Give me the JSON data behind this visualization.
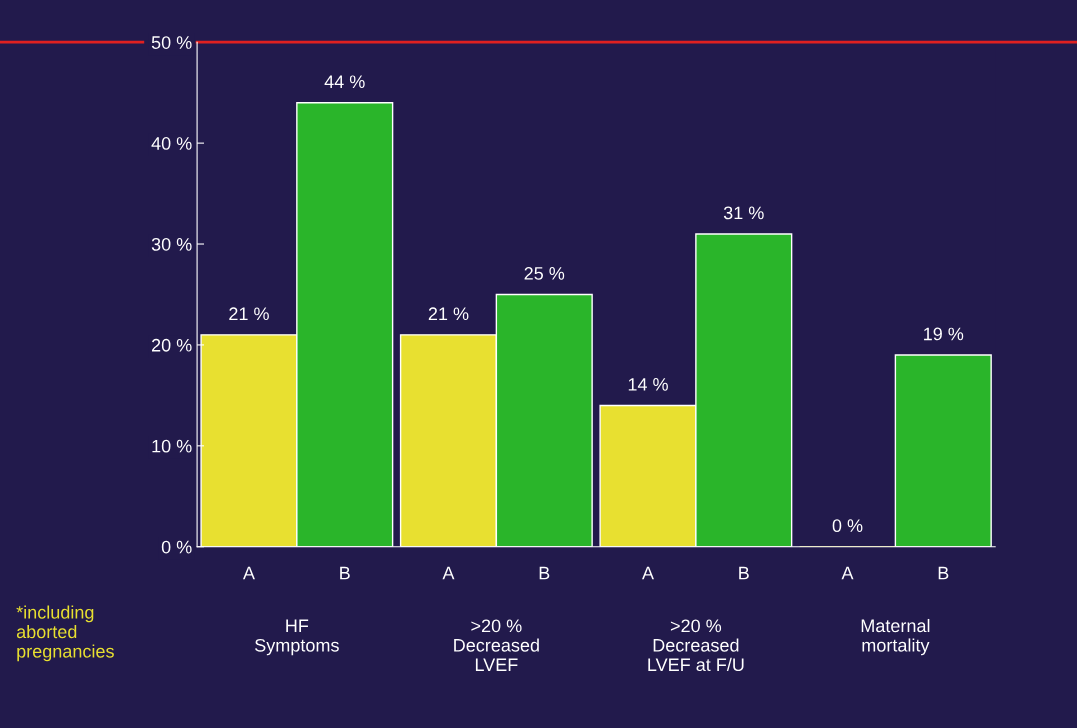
{
  "chart_data": {
    "type": "bar",
    "categories": [
      "HF\nSymptoms",
      ">20 %\nDecreased\nLVEF",
      ">20 %\nDecreased\nLVEF at F/U",
      "Maternal\nmortality"
    ],
    "series": [
      {
        "name": "A",
        "color": "#e8e030",
        "values": [
          21,
          21,
          14,
          0
        ],
        "value_labels": [
          "21 %",
          "21 %",
          "14 %",
          "0 %"
        ]
      },
      {
        "name": "B",
        "color": "#2ab52a",
        "values": [
          44,
          25,
          31,
          19
        ],
        "value_labels": [
          "44 %",
          "25 %",
          "31 %",
          "19 %"
        ]
      }
    ],
    "ylim": [
      0,
      50
    ],
    "yticks": [
      {
        "value": 0,
        "label": "0 %"
      },
      {
        "value": 10,
        "label": "10 %"
      },
      {
        "value": 20,
        "label": "20 %"
      },
      {
        "value": 30,
        "label": "30 %"
      },
      {
        "value": 40,
        "label": "40 %"
      },
      {
        "value": 50,
        "label": "50 %"
      }
    ],
    "ref_lines": [
      {
        "axis": "y",
        "value": 50,
        "color": "#e02020"
      }
    ],
    "annotations": [
      "*including aborted pregnancies"
    ],
    "grid": false,
    "legend": false
  }
}
